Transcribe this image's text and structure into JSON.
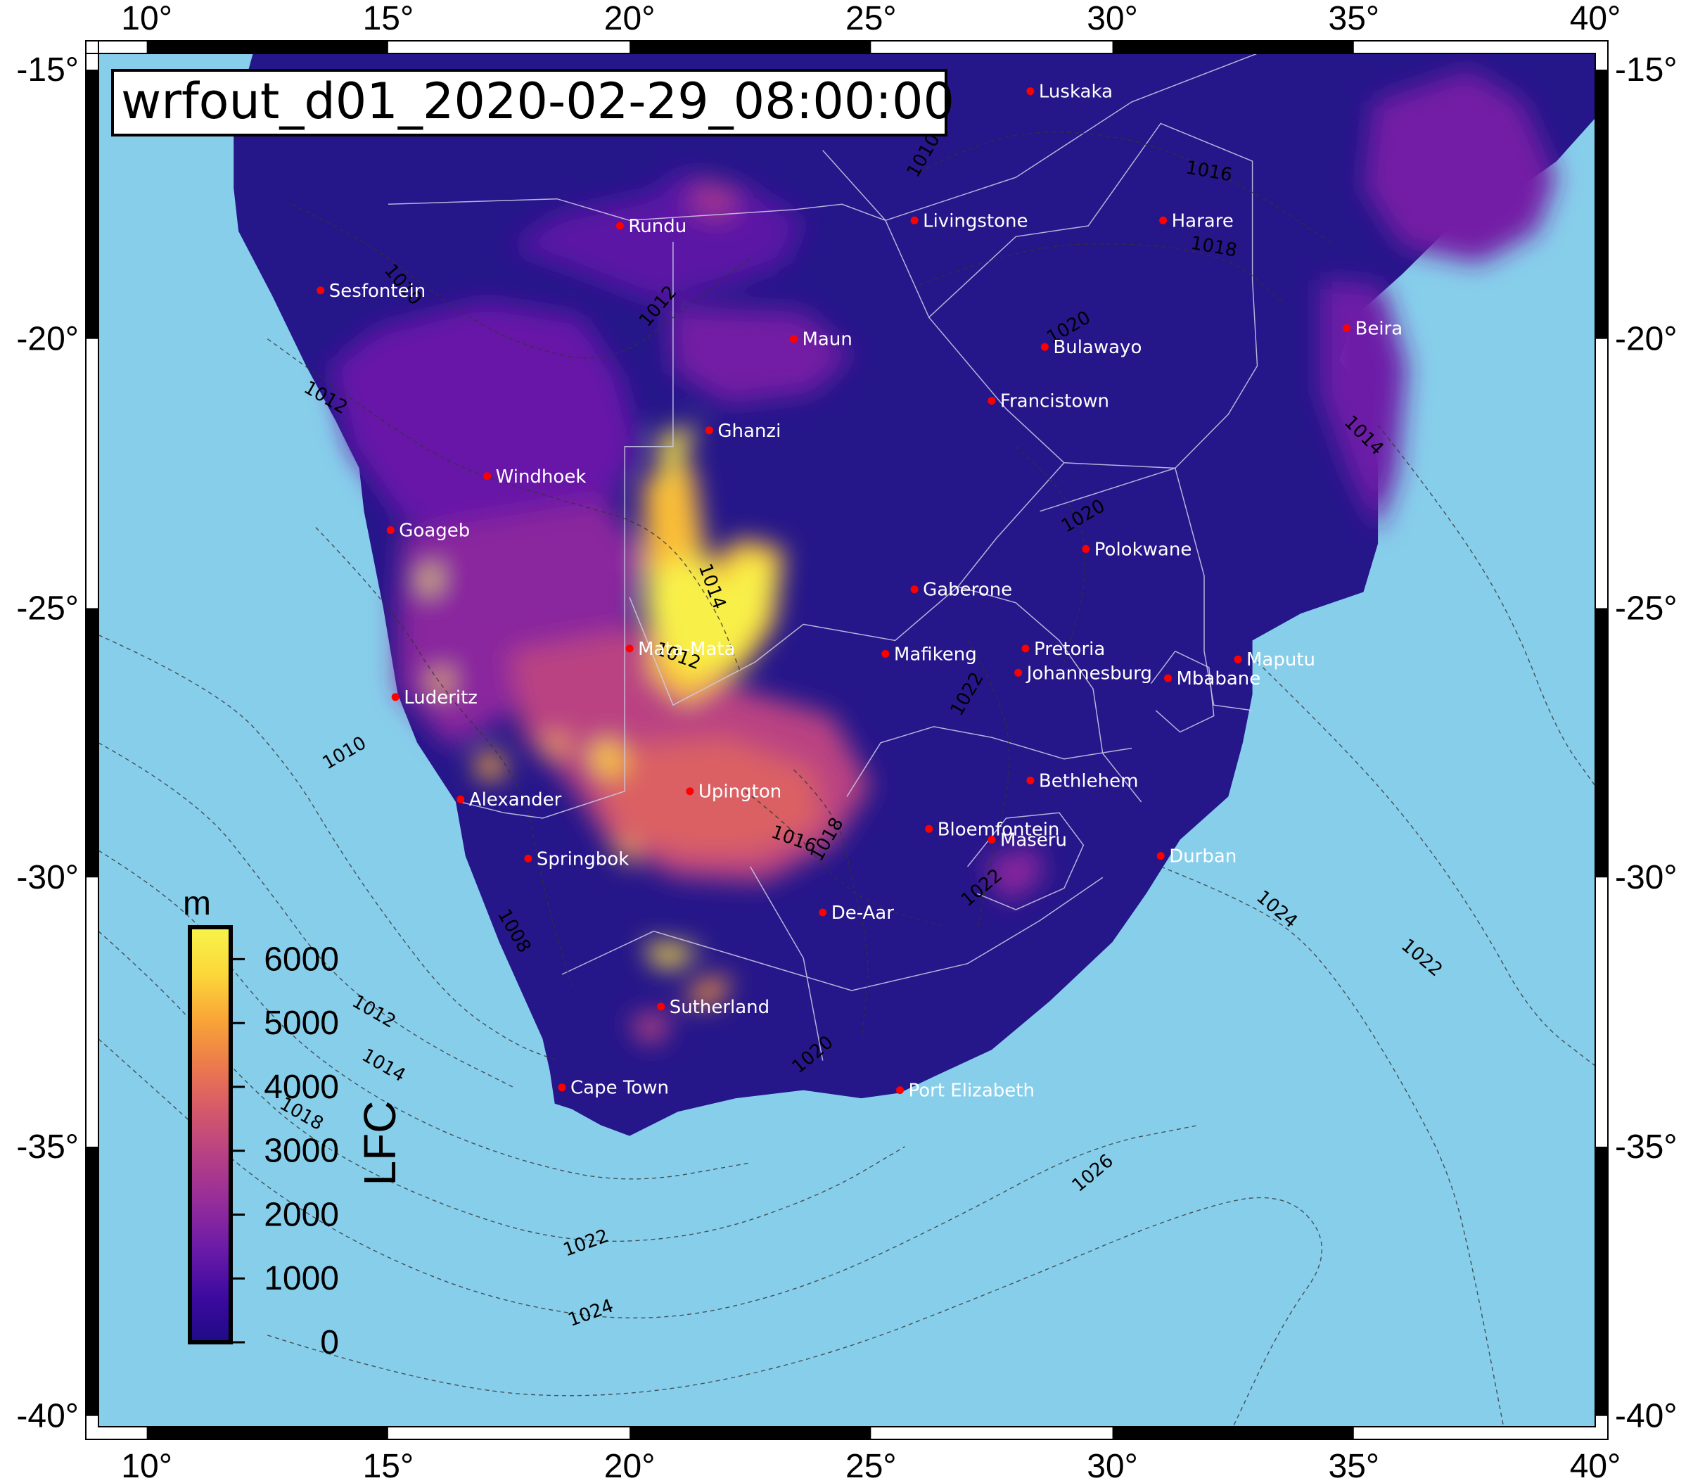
{
  "title": "wrfout_d01_2020-02-29_08:00:00",
  "colors": {
    "ocean": "#87ceeb",
    "land_low": "#25168a",
    "frame": "#000000",
    "city_dot": "#ff0000",
    "city_text": "#ffffff",
    "colormap": [
      "#1e0b84",
      "#3d0aa0",
      "#6a1aa8",
      "#932c9b",
      "#b53f86",
      "#d4586b",
      "#ec7a4c",
      "#f9a537",
      "#fcd83a",
      "#f7f44a"
    ]
  },
  "axes": {
    "lon_ticks": [
      "10°",
      "15°",
      "20°",
      "25°",
      "30°",
      "35°",
      "40°"
    ],
    "lat_ticks": [
      "-15°",
      "-20°",
      "-25°",
      "-30°",
      "-35°",
      "-40°"
    ],
    "lon_range": [
      9,
      40
    ],
    "lat_range": [
      -14.7,
      -40.2
    ]
  },
  "colorbar": {
    "unit": "m",
    "variable": "LFC",
    "ticks": [
      "0",
      "1000",
      "2000",
      "3000",
      "4000",
      "5000",
      "6000"
    ],
    "range": [
      0,
      6500
    ]
  },
  "cities": [
    {
      "name": "Luskaka",
      "lon": 28.3,
      "lat": -15.4
    },
    {
      "name": "Rundu",
      "lon": 19.8,
      "lat": -17.9
    },
    {
      "name": "Livingstone",
      "lon": 25.9,
      "lat": -17.8
    },
    {
      "name": "Harare",
      "lon": 31.05,
      "lat": -17.8
    },
    {
      "name": "Sesfontein",
      "lon": 13.6,
      "lat": -19.1
    },
    {
      "name": "Maun",
      "lon": 23.4,
      "lat": -20.0
    },
    {
      "name": "Bulawayo",
      "lon": 28.6,
      "lat": -20.15
    },
    {
      "name": "Beira",
      "lon": 34.85,
      "lat": -19.8
    },
    {
      "name": "Francistown",
      "lon": 27.5,
      "lat": -21.15
    },
    {
      "name": "Ghanzi",
      "lon": 21.65,
      "lat": -21.7
    },
    {
      "name": "Windhoek",
      "lon": 17.05,
      "lat": -22.55
    },
    {
      "name": "Goageb",
      "lon": 15.05,
      "lat": -23.55
    },
    {
      "name": "Polokwane",
      "lon": 29.45,
      "lat": -23.9
    },
    {
      "name": "Gaberone",
      "lon": 25.9,
      "lat": -24.65
    },
    {
      "name": "Mata-Mata",
      "lon": 20.0,
      "lat": -25.75
    },
    {
      "name": "Mafikeng",
      "lon": 25.3,
      "lat": -25.85
    },
    {
      "name": "Pretoria",
      "lon": 28.2,
      "lat": -25.75
    },
    {
      "name": "Maputu",
      "lon": 32.6,
      "lat": -25.95
    },
    {
      "name": "Johannesburg",
      "lon": 28.05,
      "lat": -26.2
    },
    {
      "name": "Mbabane",
      "lon": 31.15,
      "lat": -26.3
    },
    {
      "name": "Luderitz",
      "lon": 15.15,
      "lat": -26.65
    },
    {
      "name": "Bethlehem",
      "lon": 28.3,
      "lat": -28.2
    },
    {
      "name": "Upington",
      "lon": 21.25,
      "lat": -28.4
    },
    {
      "name": "Alexander",
      "lon": 16.5,
      "lat": -28.55
    },
    {
      "name": "Bloemfontein",
      "lon": 26.2,
      "lat": -29.1
    },
    {
      "name": "Maseru",
      "lon": 27.5,
      "lat": -29.3
    },
    {
      "name": "Springbok",
      "lon": 17.9,
      "lat": -29.65
    },
    {
      "name": "Durban",
      "lon": 31.0,
      "lat": -29.6
    },
    {
      "name": "De-Aar",
      "lon": 24.0,
      "lat": -30.65
    },
    {
      "name": "Sutherland",
      "lon": 20.65,
      "lat": -32.4
    },
    {
      "name": "Cape Town",
      "lon": 18.6,
      "lat": -33.9
    },
    {
      "name": "Port Elizabeth",
      "lon": 25.6,
      "lat": -33.95
    }
  ],
  "isobars": [
    {
      "label": "1010",
      "lon": 26.1,
      "lat": -16.6,
      "rot": -60
    },
    {
      "label": "1016",
      "lon": 32.0,
      "lat": -16.9,
      "rot": 10
    },
    {
      "label": "1018",
      "lon": 32.1,
      "lat": -18.3,
      "rot": 10
    },
    {
      "label": "1010",
      "lon": 15.3,
      "lat": -19.0,
      "rot": 50
    },
    {
      "label": "1012",
      "lon": 20.6,
      "lat": -19.4,
      "rot": -50
    },
    {
      "label": "1020",
      "lon": 29.1,
      "lat": -19.8,
      "rot": -30
    },
    {
      "label": "1012",
      "lon": 13.7,
      "lat": -21.1,
      "rot": 30
    },
    {
      "label": "1014",
      "lon": 35.2,
      "lat": -21.8,
      "rot": 45
    },
    {
      "label": "1020",
      "lon": 29.4,
      "lat": -23.3,
      "rot": -30
    },
    {
      "label": "1014",
      "lon": 21.7,
      "lat": -24.6,
      "rot": 70
    },
    {
      "label": "1012",
      "lon": 21.0,
      "lat": -25.9,
      "rot": 20
    },
    {
      "label": "1022",
      "lon": 27.0,
      "lat": -26.6,
      "rot": -60
    },
    {
      "label": "1010",
      "lon": 14.1,
      "lat": -27.7,
      "rot": -30
    },
    {
      "label": "1016",
      "lon": 23.4,
      "lat": -29.3,
      "rot": 20
    },
    {
      "label": "1018",
      "lon": 24.1,
      "lat": -29.3,
      "rot": -60
    },
    {
      "label": "1022",
      "lon": 27.3,
      "lat": -30.2,
      "rot": -40
    },
    {
      "label": "1024",
      "lon": 33.4,
      "lat": -30.6,
      "rot": 40
    },
    {
      "label": "1022",
      "lon": 36.4,
      "lat": -31.5,
      "rot": 40
    },
    {
      "label": "1008",
      "lon": 17.6,
      "lat": -31.0,
      "rot": 60
    },
    {
      "label": "1012",
      "lon": 14.7,
      "lat": -32.5,
      "rot": 30
    },
    {
      "label": "1014",
      "lon": 14.9,
      "lat": -33.5,
      "rot": 30
    },
    {
      "label": "1020",
      "lon": 23.8,
      "lat": -33.3,
      "rot": -40
    },
    {
      "label": "1018",
      "lon": 13.2,
      "lat": -34.4,
      "rot": 30
    },
    {
      "label": "1026",
      "lon": 29.6,
      "lat": -35.5,
      "rot": -40
    },
    {
      "label": "1022",
      "lon": 19.1,
      "lat": -36.8,
      "rot": -20
    },
    {
      "label": "1024",
      "lon": 19.2,
      "lat": -38.1,
      "rot": -20
    }
  ],
  "lfc_regions": [
    {
      "value": 1200,
      "pts": [
        [
          21.0,
          -16.9
        ],
        [
          22.5,
          -17.2
        ],
        [
          23.6,
          -17.8
        ],
        [
          23.2,
          -18.6
        ],
        [
          22.0,
          -19.0
        ],
        [
          20.5,
          -19.3
        ],
        [
          18.5,
          -18.6
        ],
        [
          17.5,
          -18.3
        ],
        [
          18.5,
          -17.7
        ],
        [
          20.5,
          -17.3
        ]
      ]
    },
    {
      "value": 2500,
      "pts": [
        [
          21.5,
          -17.0
        ],
        [
          22.3,
          -17.3
        ],
        [
          22.0,
          -17.8
        ],
        [
          21.2,
          -17.6
        ]
      ]
    },
    {
      "value": 1400,
      "pts": [
        [
          14.8,
          -19.8
        ],
        [
          17.0,
          -19.3
        ],
        [
          19.0,
          -19.6
        ],
        [
          19.8,
          -20.7
        ],
        [
          20.2,
          -22.0
        ],
        [
          19.6,
          -23.0
        ],
        [
          17.5,
          -23.6
        ],
        [
          15.3,
          -23.4
        ],
        [
          14.2,
          -22.0
        ],
        [
          13.8,
          -20.5
        ]
      ]
    },
    {
      "value": 1600,
      "pts": [
        [
          20.8,
          -19.4
        ],
        [
          23.6,
          -19.5
        ],
        [
          24.6,
          -20.3
        ],
        [
          23.8,
          -21.0
        ],
        [
          22.0,
          -21.2
        ],
        [
          20.9,
          -20.6
        ]
      ]
    },
    {
      "value": 2000,
      "pts": [
        [
          15.3,
          -23.6
        ],
        [
          19.5,
          -23.0
        ],
        [
          20.3,
          -24.0
        ],
        [
          19.9,
          -25.8
        ],
        [
          18.2,
          -26.6
        ],
        [
          16.3,
          -27.6
        ],
        [
          15.2,
          -26.5
        ],
        [
          15.2,
          -24.8
        ]
      ]
    },
    {
      "value": 3000,
      "pts": [
        [
          17.5,
          -25.8
        ],
        [
          20.6,
          -25.3
        ],
        [
          22.3,
          -26.5
        ],
        [
          24.2,
          -27.0
        ],
        [
          25.0,
          -28.3
        ],
        [
          24.2,
          -29.4
        ],
        [
          22.8,
          -30.1
        ],
        [
          21.0,
          -30.0
        ],
        [
          19.6,
          -29.4
        ],
        [
          18.7,
          -28.2
        ],
        [
          17.8,
          -27.4
        ]
      ]
    },
    {
      "value": 3800,
      "pts": [
        [
          19.3,
          -27.6
        ],
        [
          22.0,
          -27.4
        ],
        [
          23.8,
          -28.0
        ],
        [
          24.0,
          -29.0
        ],
        [
          22.6,
          -29.6
        ],
        [
          21.0,
          -29.6
        ],
        [
          19.6,
          -29.1
        ]
      ]
    },
    {
      "value": 5400,
      "pts": [
        [
          20.3,
          -22.6
        ],
        [
          21.3,
          -22.3
        ],
        [
          21.6,
          -24.2
        ],
        [
          22.3,
          -23.7
        ],
        [
          23.2,
          -23.9
        ],
        [
          23.0,
          -25.3
        ],
        [
          22.4,
          -26.1
        ],
        [
          21.8,
          -26.4
        ],
        [
          21.2,
          -26.8
        ],
        [
          20.4,
          -26.2
        ],
        [
          20.6,
          -25.1
        ],
        [
          20.3,
          -24.3
        ]
      ]
    },
    {
      "value": 6400,
      "pts": [
        [
          20.4,
          -24.3
        ],
        [
          21.5,
          -24.0
        ],
        [
          21.8,
          -24.6
        ],
        [
          22.4,
          -24.0
        ],
        [
          23.0,
          -24.2
        ],
        [
          22.8,
          -25.2
        ],
        [
          22.2,
          -26.0
        ],
        [
          21.2,
          -26.3
        ],
        [
          20.6,
          -25.6
        ],
        [
          20.3,
          -25.0
        ]
      ]
    },
    {
      "value": 6200,
      "pts": [
        [
          20.6,
          -21.8
        ],
        [
          21.4,
          -21.6
        ],
        [
          21.0,
          -22.4
        ],
        [
          20.7,
          -22.8
        ]
      ]
    },
    {
      "value": 6000,
      "pts": [
        [
          15.6,
          -24.4
        ],
        [
          16.1,
          -24.2
        ],
        [
          15.9,
          -24.8
        ]
      ]
    },
    {
      "value": 5400,
      "pts": [
        [
          15.8,
          -26.3
        ],
        [
          16.3,
          -26.1
        ],
        [
          16.2,
          -26.7
        ]
      ]
    },
    {
      "value": 5200,
      "pts": [
        [
          18.1,
          -27.4
        ],
        [
          18.8,
          -27.4
        ],
        [
          18.5,
          -27.8
        ]
      ]
    },
    {
      "value": 5600,
      "pts": [
        [
          19.1,
          -27.7
        ],
        [
          19.6,
          -27.4
        ],
        [
          20.0,
          -27.9
        ],
        [
          19.5,
          -28.2
        ]
      ]
    },
    {
      "value": 5200,
      "pts": [
        [
          16.8,
          -27.8
        ],
        [
          17.2,
          -27.6
        ],
        [
          17.5,
          -28.1
        ],
        [
          16.9,
          -28.2
        ]
      ]
    },
    {
      "value": 5200,
      "pts": [
        [
          19.6,
          -29.4
        ],
        [
          20.2,
          -29.3
        ],
        [
          20.0,
          -29.8
        ]
      ]
    },
    {
      "value": 6000,
      "pts": [
        [
          20.3,
          -31.2
        ],
        [
          21.5,
          -31.3
        ],
        [
          20.9,
          -31.7
        ],
        [
          20.5,
          -31.6
        ]
      ]
    },
    {
      "value": 4800,
      "pts": [
        [
          21.3,
          -32.0
        ],
        [
          22.1,
          -31.8
        ],
        [
          21.9,
          -32.3
        ],
        [
          21.2,
          -32.4
        ]
      ]
    },
    {
      "value": 3000,
      "pts": [
        [
          20.0,
          -32.6
        ],
        [
          20.9,
          -32.5
        ],
        [
          20.6,
          -33.1
        ],
        [
          20.2,
          -33.0
        ]
      ]
    },
    {
      "value": 2000,
      "pts": [
        [
          27.3,
          -29.7
        ],
        [
          28.4,
          -29.4
        ],
        [
          28.6,
          -30.0
        ],
        [
          27.8,
          -30.5
        ]
      ]
    },
    {
      "value": 1600,
      "pts": [
        [
          35.4,
          -15.6
        ],
        [
          37.4,
          -15.0
        ],
        [
          38.5,
          -15.6
        ],
        [
          39.2,
          -17.0
        ],
        [
          38.8,
          -18.0
        ],
        [
          37.6,
          -18.6
        ],
        [
          36.0,
          -18.3
        ],
        [
          35.2,
          -17.2
        ]
      ]
    },
    {
      "value": 1500,
      "pts": [
        [
          34.3,
          -18.9
        ],
        [
          35.6,
          -19.0
        ],
        [
          36.1,
          -20.5
        ],
        [
          35.9,
          -22.5
        ],
        [
          35.5,
          -23.6
        ],
        [
          34.9,
          -22.5
        ],
        [
          34.3,
          -21.0
        ]
      ]
    }
  ]
}
